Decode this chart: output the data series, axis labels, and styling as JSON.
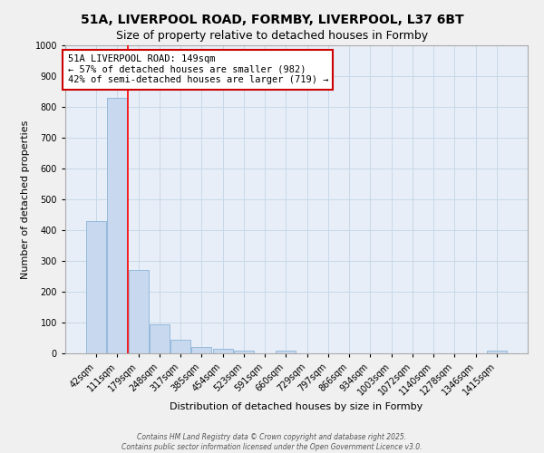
{
  "title1": "51A, LIVERPOOL ROAD, FORMBY, LIVERPOOL, L37 6BT",
  "title2": "Size of property relative to detached houses in Formby",
  "xlabel": "Distribution of detached houses by size in Formby",
  "ylabel": "Number of detached properties",
  "categories": [
    "42sqm",
    "111sqm",
    "179sqm",
    "248sqm",
    "317sqm",
    "385sqm",
    "454sqm",
    "523sqm",
    "591sqm",
    "660sqm",
    "729sqm",
    "797sqm",
    "866sqm",
    "934sqm",
    "1003sqm",
    "1072sqm",
    "1140sqm",
    "1278sqm",
    "1346sqm",
    "1415sqm"
  ],
  "values": [
    430,
    830,
    270,
    95,
    45,
    20,
    15,
    10,
    0,
    10,
    0,
    0,
    0,
    0,
    0,
    0,
    0,
    0,
    0,
    10
  ],
  "bar_color": "#c8d8ee",
  "bar_edge_color": "#8ab4d8",
  "grid_color": "#c8d8e8",
  "background_color": "#e8eef8",
  "fig_background": "#f0f0f0",
  "red_line_x": 1.5,
  "annotation_text": "51A LIVERPOOL ROAD: 149sqm\n← 57% of detached houses are smaller (982)\n42% of semi-detached houses are larger (719) →",
  "annotation_box_color": "#ffffff",
  "annotation_box_edge": "#cc0000",
  "ylim": [
    0,
    1000
  ],
  "yticks": [
    0,
    100,
    200,
    300,
    400,
    500,
    600,
    700,
    800,
    900,
    1000
  ],
  "footer1": "Contains HM Land Registry data © Crown copyright and database right 2025.",
  "footer2": "Contains public sector information licensed under the Open Government Licence v3.0.",
  "title_fontsize": 10,
  "subtitle_fontsize": 9,
  "label_fontsize": 8,
  "tick_fontsize": 7,
  "annotation_fontsize": 7.5
}
